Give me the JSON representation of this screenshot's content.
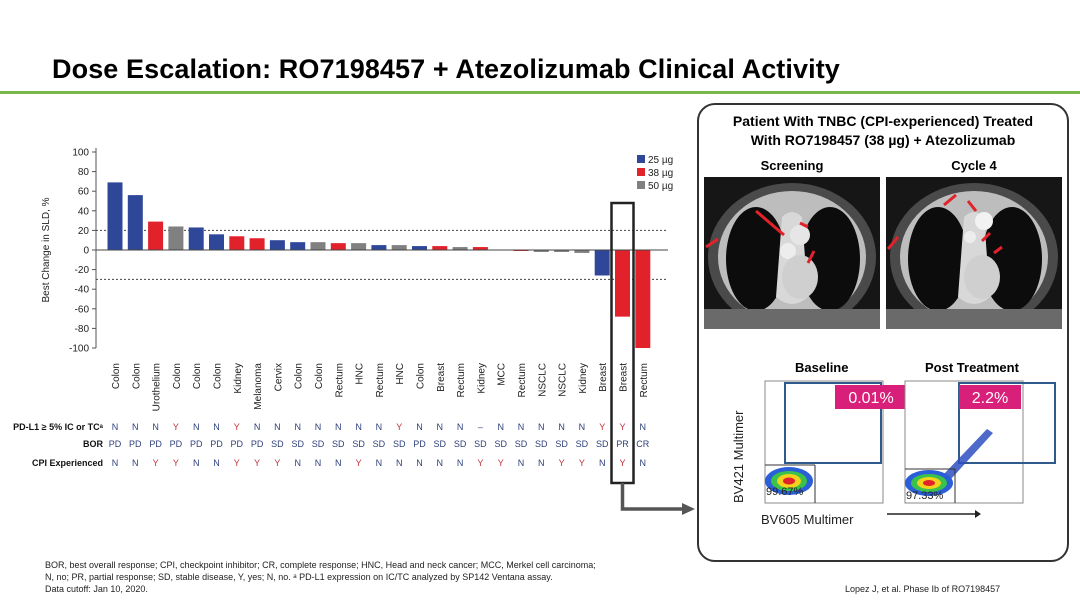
{
  "slide": {
    "title": "Dose Escalation: RO7198457 + Atezolizumab Clinical Activity"
  },
  "chart_data": {
    "type": "bar",
    "ylabel": "Best Change in SLD, %",
    "ylim": [
      -100,
      100
    ],
    "yticks": [
      100,
      80,
      60,
      40,
      20,
      0,
      -20,
      -40,
      -60,
      -80,
      -100
    ],
    "reference_lines": [
      20,
      -30
    ],
    "legend": [
      {
        "label": "25 µg",
        "color": "#2e4799"
      },
      {
        "label": "38 µg",
        "color": "#e2222b"
      },
      {
        "label": "50 µg",
        "color": "#808080"
      }
    ],
    "categories": [
      "Colon",
      "Colon",
      "Urothelium",
      "Colon",
      "Colon",
      "Colon",
      "Kidney",
      "Melanoma",
      "Cervix",
      "Colon",
      "Colon",
      "Rectum",
      "HNC",
      "Rectum",
      "HNC",
      "Colon",
      "Breast",
      "Rectum",
      "Kidney",
      "MCC",
      "Rectum",
      "NSCLC",
      "NSCLC",
      "Kidney",
      "Breast",
      "Breast",
      "Rectum"
    ],
    "values": [
      69,
      56,
      29,
      24,
      23,
      16,
      14,
      12,
      10,
      8,
      8,
      7,
      7,
      5,
      5,
      4,
      4,
      3,
      3,
      0,
      -1,
      -2,
      -2,
      -3,
      -26,
      -68,
      -100
    ],
    "dose": [
      "25 µg",
      "25 µg",
      "38 µg",
      "50 µg",
      "25 µg",
      "25 µg",
      "38 µg",
      "38 µg",
      "25 µg",
      "25 µg",
      "50 µg",
      "38 µg",
      "50 µg",
      "25 µg",
      "50 µg",
      "25 µg",
      "38 µg",
      "50 µg",
      "38 µg",
      "25 µg",
      "38 µg",
      "50 µg",
      "50 µg",
      "50 µg",
      "25 µg",
      "38 µg",
      "38 µg"
    ],
    "highlight_index": 25,
    "rows": [
      {
        "label": "PD-L1 ≥ 5% IC or TCᵃ",
        "values": [
          "N",
          "N",
          "N",
          "Y",
          "N",
          "N",
          "Y",
          "N",
          "N",
          "N",
          "N",
          "N",
          "N",
          "N",
          "Y",
          "N",
          "N",
          "N",
          "–",
          "N",
          "N",
          "N",
          "N",
          "N",
          "Y",
          "Y",
          "N"
        ]
      },
      {
        "label": "BOR",
        "values": [
          "PD",
          "PD",
          "PD",
          "PD",
          "PD",
          "PD",
          "PD",
          "PD",
          "SD",
          "SD",
          "SD",
          "SD",
          "SD",
          "SD",
          "SD",
          "PD",
          "SD",
          "SD",
          "SD",
          "SD",
          "SD",
          "SD",
          "SD",
          "SD",
          "SD",
          "PR",
          "CR"
        ]
      },
      {
        "label": "CPI Experienced",
        "values": [
          "N",
          "N",
          "Y",
          "Y",
          "N",
          "N",
          "Y",
          "Y",
          "Y",
          "N",
          "N",
          "N",
          "Y",
          "N",
          "N",
          "N",
          "N",
          "N",
          "Y",
          "Y",
          "N",
          "N",
          "Y",
          "Y",
          "N",
          "Y",
          "N"
        ]
      }
    ]
  },
  "panel": {
    "title_line1": "Patient With TNBC (CPI-experienced) Treated",
    "title_line2": "With RO7198457 (38 µg) + Atezolizumab",
    "scan_left_label": "Screening",
    "scan_right_label": "Cycle 4",
    "flow_left_label": "Baseline",
    "flow_right_label": "Post Treatment",
    "flow_left_pct": "0.01%",
    "flow_right_pct": "2.2%",
    "flow_left_low": "99.67%",
    "flow_right_low": "97.33%",
    "flow_ylabel": "BV421 Multimer",
    "flow_xlabel": "BV605 Multimer"
  },
  "footnote": {
    "line1": "BOR, best overall response; CPI, checkpoint inhibitor; CR, complete response; HNC, Head and neck cancer; MCC, Merkel cell carcinoma;",
    "line2": "N, no; PR, partial response; SD, stable disease, Y, yes; N, no. ᵃ PD-L1 expression on IC/TC analyzed by SP142 Ventana assay.",
    "line3": "Data cutoff: Jan 10, 2020."
  },
  "citation": "Lopez J, et al. Phase Ib of RO7198457"
}
